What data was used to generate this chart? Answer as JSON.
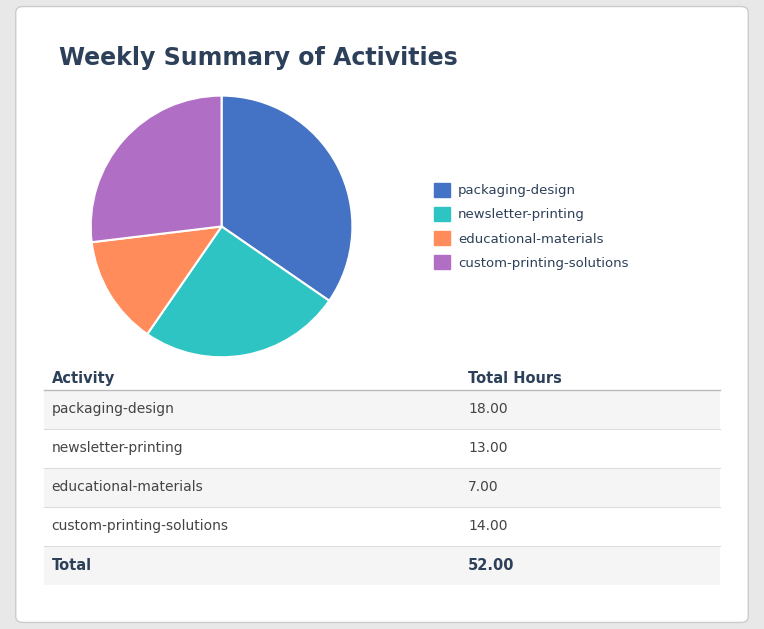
{
  "title": "Weekly Summary of Activities",
  "activities": [
    "packaging-design",
    "newsletter-printing",
    "educational-materials",
    "custom-printing-solutions"
  ],
  "hours": [
    18.0,
    13.0,
    7.0,
    14.0
  ],
  "total": 52.0,
  "colors": [
    "#4472C4",
    "#2EC4C4",
    "#FF8C5A",
    "#B06EC4"
  ],
  "background_color": "#e8e8e8",
  "card_color": "#ffffff",
  "title_color": "#2d4059",
  "table_header_color": "#2d4059",
  "table_row_odd_color": "#f5f5f5",
  "table_row_even_color": "#ffffff",
  "col1_header": "Activity",
  "col2_header": "Total Hours"
}
